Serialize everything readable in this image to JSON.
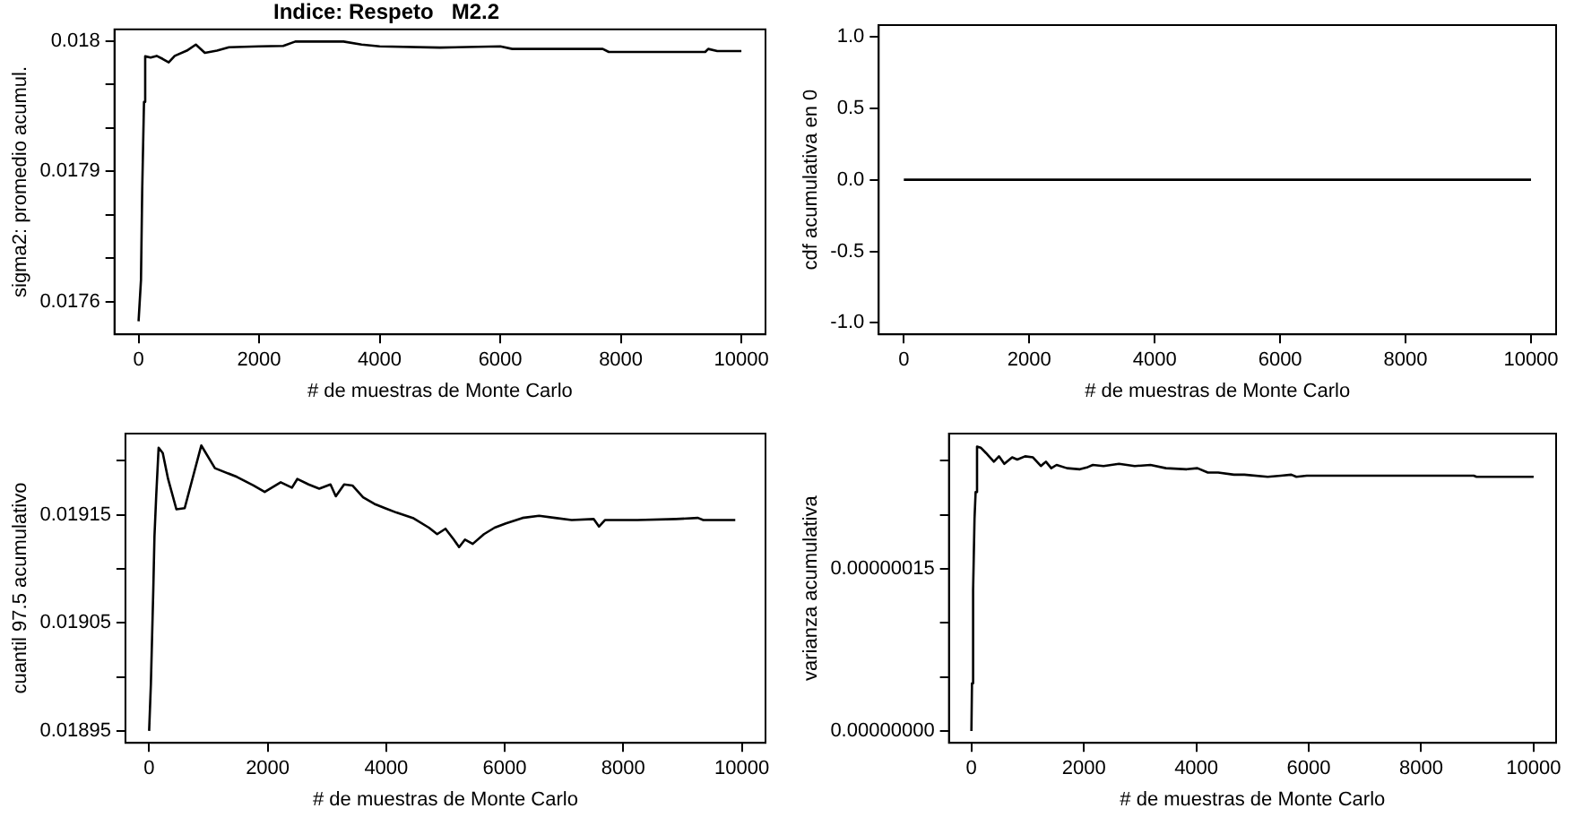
{
  "chart_data": [
    {
      "type": "line",
      "title": "Indice: Respeto   M2.2",
      "xlabel": "# de muestras de Monte Carlo",
      "ylabel": "sigma2: promedio acumul.",
      "grid": false,
      "legend": false,
      "xlim": [
        -400,
        10400
      ],
      "xticks": [
        0,
        2000,
        4000,
        6000,
        8000,
        10000
      ],
      "ylim": [
        0.017525,
        0.018227
      ],
      "yticks": [
        0.0176,
        {
          "value": 0.0177,
          "label": null
        },
        {
          "value": 0.0178,
          "label": null
        },
        0.0179,
        {
          "value": 0.018,
          "label": null
        },
        {
          "value": 0.0181,
          "label": null
        },
        {
          "value": 0.0182,
          "label": "0.018"
        }
      ],
      "series": [
        {
          "color": "#000000",
          "x": [
            0,
            40,
            60,
            90,
            110,
            200,
            300,
            400,
            500,
            600,
            800,
            950,
            1100,
            1300,
            1500,
            2000,
            2400,
            2600,
            3400,
            3700,
            4000,
            5000,
            6000,
            6200,
            7700,
            7800,
            9400,
            9450,
            9600,
            10000
          ],
          "values": [
            0.017555,
            0.01765,
            0.017855,
            0.01806,
            0.018165,
            0.018162,
            0.018166,
            0.018159,
            0.018151,
            0.018166,
            0.018178,
            0.018192,
            0.018173,
            0.018178,
            0.018186,
            0.018188,
            0.018189,
            0.018199,
            0.018199,
            0.018192,
            0.018188,
            0.018185,
            0.018188,
            0.018182,
            0.018182,
            0.018175,
            0.018175,
            0.018182,
            0.018177,
            0.018177
          ]
        }
      ]
    },
    {
      "type": "line",
      "xlabel": "# de muestras de Monte Carlo",
      "ylabel": "cdf acumulativa en 0",
      "grid": false,
      "legend": false,
      "xlim": [
        -400,
        10400
      ],
      "xticks": [
        0,
        2000,
        4000,
        6000,
        8000,
        10000
      ],
      "ylim": [
        -1.08,
        1.08
      ],
      "yticks": [
        {
          "value": -1,
          "label": "-1.0"
        },
        -0.5,
        {
          "value": 0,
          "label": "0.0"
        },
        0.5,
        {
          "value": 1,
          "label": "1.0"
        }
      ],
      "series": [
        {
          "color": "#000000",
          "x": [
            0,
            10000
          ],
          "values": [
            0,
            0
          ]
        }
      ]
    },
    {
      "type": "line",
      "xlabel": "# de muestras de Monte Carlo",
      "ylabel": "cuantil 97.5 acumulativo",
      "grid": false,
      "legend": false,
      "xlim": [
        -400,
        10400
      ],
      "xticks": [
        0,
        2000,
        4000,
        6000,
        8000,
        10000
      ],
      "ylim": [
        0.018939,
        0.019225
      ],
      "yticks": [
        0.01895,
        {
          "value": 0.019,
          "label": null
        },
        0.01905,
        {
          "value": 0.0191,
          "label": null
        },
        0.01915,
        {
          "value": 0.0192,
          "label": null
        }
      ],
      "series": [
        {
          "color": "#000000",
          "x": [
            0,
            30,
            70,
            90,
            120,
            160,
            230,
            320,
            460,
            600,
            740,
            880,
            1110,
            1480,
            1760,
            1950,
            2220,
            2410,
            2500,
            2690,
            2870,
            3060,
            3150,
            3290,
            3430,
            3610,
            3800,
            3980,
            4170,
            4450,
            4720,
            4860,
            5000,
            5140,
            5230,
            5330,
            5460,
            5650,
            5830,
            6020,
            6300,
            6580,
            6850,
            7130,
            7500,
            7590,
            7690,
            8240,
            8890,
            9260,
            9350,
            9890
          ],
          "values": [
            0.01895,
            0.018994,
            0.01908,
            0.01913,
            0.019168,
            0.019212,
            0.019207,
            0.019183,
            0.019155,
            0.019156,
            0.019185,
            0.019214,
            0.019193,
            0.019185,
            0.019177,
            0.019171,
            0.01918,
            0.019175,
            0.019183,
            0.019178,
            0.019174,
            0.019178,
            0.019167,
            0.019178,
            0.019177,
            0.019166,
            0.01916,
            0.019156,
            0.019152,
            0.019147,
            0.019138,
            0.019132,
            0.019137,
            0.019127,
            0.01912,
            0.019127,
            0.019123,
            0.019132,
            0.019138,
            0.019142,
            0.019147,
            0.019149,
            0.019147,
            0.019145,
            0.019146,
            0.019139,
            0.019145,
            0.019145,
            0.019146,
            0.019147,
            0.019145,
            0.019145
          ]
        }
      ]
    },
    {
      "type": "line",
      "xlabel": "# de muestras de Monte Carlo",
      "ylabel": "varianza acumulativa",
      "grid": false,
      "legend": false,
      "xlim": [
        -400,
        10400
      ],
      "xticks": [
        0,
        2000,
        4000,
        6000,
        8000,
        10000
      ],
      "ylim": [
        -1.1e-08,
        2.75e-07
      ],
      "yticks": [
        {
          "value": 0,
          "label": "0.00000000"
        },
        {
          "value": 5e-08,
          "label": null
        },
        {
          "value": 1e-07,
          "label": null
        },
        {
          "value": 1.5e-07,
          "label": "0.00000015"
        },
        {
          "value": 2e-07,
          "label": null
        },
        {
          "value": 2.5e-07,
          "label": null
        }
      ],
      "series": [
        {
          "color": "#000000",
          "x": [
            0,
            10,
            30,
            55,
            75,
            100,
            165,
            260,
            400,
            490,
            585,
            725,
            815,
            955,
            1095,
            1235,
            1280,
            1325,
            1420,
            1515,
            1700,
            1930,
            2070,
            2160,
            2350,
            2625,
            2905,
            3185,
            3460,
            3830,
            4020,
            4205,
            4390,
            4670,
            4855,
            5270,
            5505,
            5690,
            5780,
            5965,
            8935,
            8985,
            10000
          ],
          "values": [
            0,
            4.4e-08,
            1.3e-07,
            1.96e-07,
            2.21e-07,
            2.63e-07,
            2.62e-07,
            2.57e-07,
            2.49e-07,
            2.54e-07,
            2.47e-07,
            2.53e-07,
            2.51e-07,
            2.54e-07,
            2.53e-07,
            2.45e-07,
            2.47e-07,
            2.49e-07,
            2.43e-07,
            2.46e-07,
            2.43e-07,
            2.42e-07,
            2.44e-07,
            2.46e-07,
            2.45e-07,
            2.47e-07,
            2.45e-07,
            2.46e-07,
            2.43e-07,
            2.42e-07,
            2.43e-07,
            2.39e-07,
            2.39e-07,
            2.37e-07,
            2.37e-07,
            2.35e-07,
            2.36e-07,
            2.37e-07,
            2.35e-07,
            2.36e-07,
            2.36e-07,
            2.35e-07,
            2.35e-07
          ]
        }
      ]
    }
  ]
}
